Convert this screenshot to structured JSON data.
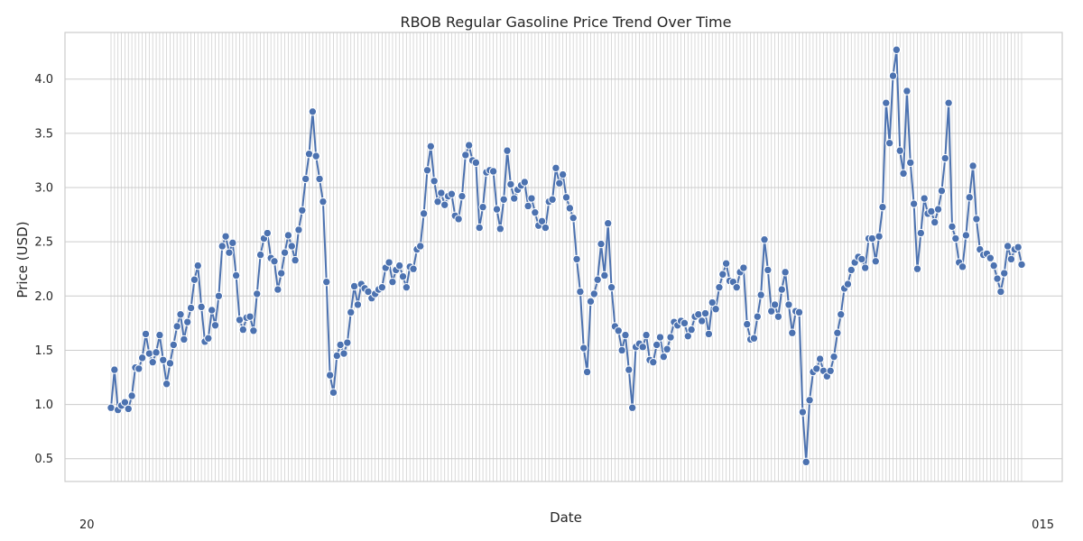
{
  "chart_data": {
    "type": "line",
    "title": "RBOB Regular Gasoline Price Trend Over Time",
    "xlabel": "Date",
    "ylabel": "Price (USD)",
    "ylim": [
      0.29,
      4.43
    ],
    "yticks": [
      "0.5",
      "1.0",
      "1.5",
      "2.0",
      "2.5",
      "3.0",
      "3.5",
      "4.0"
    ],
    "grid": true,
    "legend": "none",
    "colors": {
      "line": "#4c72b0",
      "marker_edge": "#ffffff",
      "grid": "#cccccc",
      "background": "#ffffff"
    },
    "series": [
      {
        "values": [
          0.97,
          1.32,
          0.95,
          0.99,
          1.02,
          0.96,
          1.08,
          1.34,
          1.33,
          1.43,
          1.65,
          1.47,
          1.39,
          1.48,
          1.64,
          1.41,
          1.19,
          1.38,
          1.55,
          1.72,
          1.83,
          1.6,
          1.76,
          1.89,
          2.15,
          2.28,
          1.9,
          1.58,
          1.61,
          1.87,
          1.73,
          2.0,
          2.46,
          2.55,
          2.4,
          2.49,
          2.19,
          1.78,
          1.69,
          1.8,
          1.81,
          1.68,
          2.02,
          2.38,
          2.53,
          2.58,
          2.35,
          2.32,
          2.06,
          2.21,
          2.4,
          2.56,
          2.46,
          2.33,
          2.61,
          2.79,
          3.08,
          3.31,
          3.7,
          3.29,
          3.08,
          2.87,
          2.13,
          1.27,
          1.11,
          1.45,
          1.55,
          1.47,
          1.57,
          1.85,
          2.09,
          1.92,
          2.11,
          2.07,
          2.04,
          1.98,
          2.02,
          2.06,
          2.08,
          2.26,
          2.31,
          2.13,
          2.24,
          2.28,
          2.18,
          2.08,
          2.27,
          2.25,
          2.43,
          2.46,
          2.76,
          3.16,
          3.38,
          3.06,
          2.87,
          2.95,
          2.84,
          2.92,
          2.94,
          2.74,
          2.71,
          2.92,
          3.3,
          3.39,
          3.25,
          3.23,
          2.63,
          2.82,
          3.14,
          3.16,
          3.15,
          2.8,
          2.62,
          2.89,
          3.34,
          3.03,
          2.9,
          2.98,
          3.02,
          3.05,
          2.83,
          2.9,
          2.77,
          2.65,
          2.69,
          2.63,
          2.87,
          2.89,
          3.18,
          3.04,
          3.12,
          2.91,
          2.81,
          2.72,
          2.34,
          2.04,
          1.52,
          1.3,
          1.95,
          2.02,
          2.15,
          2.48,
          2.19,
          2.67,
          2.08,
          1.72,
          1.68,
          1.5,
          1.64,
          1.32,
          0.97,
          1.53,
          1.56,
          1.53,
          1.64,
          1.41,
          1.39,
          1.55,
          1.62,
          1.44,
          1.51,
          1.62,
          1.76,
          1.73,
          1.77,
          1.75,
          1.63,
          1.69,
          1.81,
          1.83,
          1.77,
          1.84,
          1.65,
          1.94,
          1.88,
          2.08,
          2.2,
          2.3,
          2.14,
          2.13,
          2.08,
          2.22,
          2.26,
          1.74,
          1.6,
          1.61,
          1.81,
          2.01,
          2.52,
          2.24,
          1.86,
          1.92,
          1.81,
          2.06,
          2.22,
          1.92,
          1.66,
          1.86,
          1.85,
          0.93,
          0.47,
          1.04,
          1.3,
          1.33,
          1.42,
          1.31,
          1.26,
          1.31,
          1.44,
          1.66,
          1.83,
          2.07,
          2.11,
          2.24,
          2.31,
          2.36,
          2.34,
          2.26,
          2.53,
          2.53,
          2.32,
          2.55,
          2.82,
          3.78,
          3.41,
          4.03,
          4.27,
          3.34,
          3.13,
          3.89,
          3.23,
          2.85,
          2.25,
          2.58,
          2.9,
          2.76,
          2.78,
          2.68,
          2.8,
          2.97,
          3.27,
          3.78,
          2.64,
          2.53,
          2.31,
          2.27,
          2.56,
          2.91,
          3.2,
          2.71,
          2.43,
          2.38,
          2.39,
          2.35,
          2.28,
          2.16,
          2.04,
          2.21,
          2.46,
          2.34,
          2.43,
          2.45,
          2.29
        ]
      }
    ]
  },
  "x_tick_text": {
    "left": "20",
    "right": "015"
  }
}
